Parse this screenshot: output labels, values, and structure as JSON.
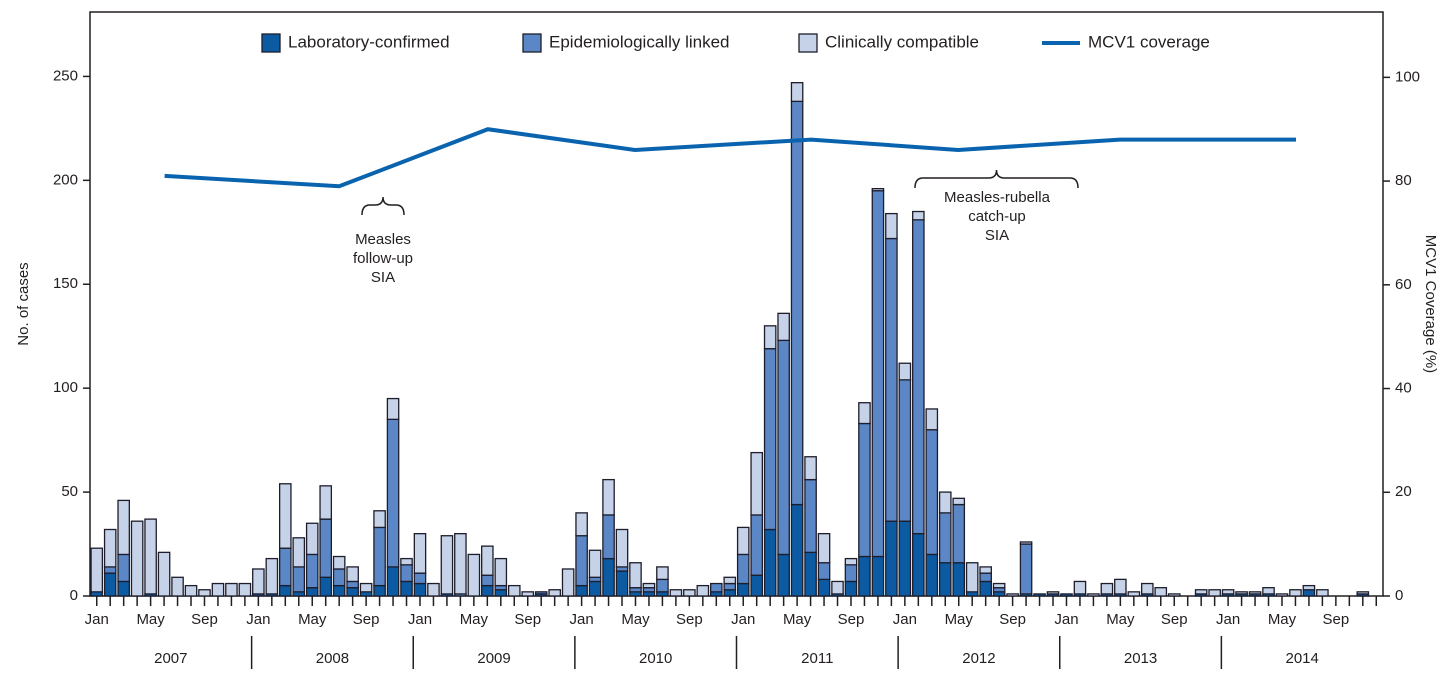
{
  "chart_data": {
    "type": "bar",
    "stacked": true,
    "categories": [
      "Jan",
      null,
      null,
      null,
      "May",
      null,
      null,
      null,
      "Sep",
      null,
      null,
      null,
      "Jan",
      null,
      null,
      null,
      "May",
      null,
      null,
      null,
      "Sep",
      null,
      null,
      null,
      "Jan",
      null,
      null,
      null,
      "May",
      null,
      null,
      null,
      "Sep",
      null,
      null,
      null,
      "Jan",
      null,
      null,
      null,
      "May",
      null,
      null,
      null,
      "Sep",
      null,
      null,
      null,
      "Jan",
      null,
      null,
      null,
      "May",
      null,
      null,
      null,
      "Sep",
      null,
      null,
      null,
      "Jan",
      null,
      null,
      null,
      "May",
      null,
      null,
      null,
      "Sep",
      null,
      null,
      null,
      "Jan",
      null,
      null,
      null,
      "May",
      null,
      null,
      null,
      "Sep",
      null,
      null,
      null,
      "Jan",
      null,
      null,
      null,
      "May",
      null,
      null,
      null,
      "Sep",
      null,
      null,
      null
    ],
    "years": [
      "2007",
      "2008",
      "2009",
      "2010",
      "2011",
      "2012",
      "2013",
      "2014"
    ],
    "y_label": "No. of cases",
    "y2_label": "MCV1 Coverage (%)",
    "ylim": [
      0,
      281
    ],
    "yticks": [
      0,
      50,
      100,
      150,
      200,
      250
    ],
    "y2lim": [
      0,
      112.6
    ],
    "y2ticks": [
      0,
      20,
      40,
      60,
      80,
      100
    ],
    "series": [
      {
        "name": "Laboratory-confirmed",
        "color": "#0b5aa2",
        "values": [
          2,
          11,
          7,
          0,
          1,
          0,
          0,
          0,
          0,
          0,
          0,
          0,
          1,
          1,
          5,
          2,
          4,
          9,
          5,
          4,
          2,
          5,
          14,
          7,
          6,
          0,
          1,
          0,
          0,
          5,
          3,
          0,
          0,
          1,
          0,
          0,
          5,
          7,
          18,
          12,
          2,
          2,
          2,
          0,
          0,
          0,
          2,
          3,
          6,
          10,
          32,
          20,
          44,
          21,
          8,
          1,
          7,
          19,
          19,
          36,
          36,
          30,
          20,
          16,
          16,
          2,
          7,
          2,
          0,
          1,
          1,
          1,
          1,
          1,
          0,
          1,
          1,
          0,
          1,
          0,
          0,
          0,
          1,
          0,
          1,
          1,
          1,
          1,
          0,
          0,
          3,
          0,
          0,
          0,
          1,
          0
        ]
      },
      {
        "name": "Epidemiologically linked",
        "color": "#5b87c6",
        "values": [
          0,
          3,
          13,
          0,
          0,
          0,
          0,
          0,
          0,
          0,
          0,
          0,
          0,
          0,
          18,
          12,
          16,
          28,
          8,
          3,
          0,
          28,
          71,
          8,
          5,
          0,
          0,
          1,
          0,
          5,
          2,
          0,
          0,
          1,
          0,
          0,
          24,
          2,
          21,
          2,
          2,
          2,
          6,
          0,
          0,
          0,
          4,
          3,
          14,
          29,
          87,
          103,
          194,
          35,
          8,
          0,
          8,
          64,
          176,
          136,
          68,
          151,
          60,
          24,
          28,
          0,
          4,
          2,
          0,
          24,
          0,
          0,
          0,
          0,
          0,
          0,
          0,
          0,
          0,
          0,
          0,
          0,
          0,
          0,
          0,
          0,
          0,
          0,
          0,
          0,
          0,
          0,
          0,
          0,
          0,
          0
        ]
      },
      {
        "name": "Clinically compatible",
        "color": "#c5d2e8",
        "values": [
          21,
          18,
          26,
          36,
          36,
          21,
          9,
          5,
          3,
          6,
          6,
          6,
          12,
          17,
          31,
          14,
          15,
          16,
          6,
          7,
          4,
          8,
          10,
          3,
          19,
          6,
          28,
          29,
          20,
          14,
          13,
          5,
          2,
          0,
          3,
          13,
          11,
          13,
          17,
          18,
          12,
          2,
          6,
          3,
          3,
          5,
          0,
          3,
          13,
          30,
          11,
          13,
          9,
          11,
          14,
          6,
          3,
          10,
          1,
          12,
          8,
          4,
          10,
          10,
          3,
          14,
          3,
          2,
          1,
          1,
          0,
          1,
          0,
          6,
          1,
          5,
          7,
          2,
          5,
          4,
          1,
          0,
          2,
          3,
          2,
          1,
          1,
          3,
          1,
          3,
          2,
          3,
          0,
          0,
          1,
          0
        ]
      },
      {
        "name": "MCV1 coverage",
        "type": "line",
        "axis": "y2",
        "color": "#0a63ae",
        "x": [
          2007.42,
          2008.5,
          2009.42,
          2010.33,
          2011.42,
          2012.33,
          2013.33,
          2014.42
        ],
        "values": [
          81,
          79,
          90,
          86,
          88,
          86,
          88,
          88
        ]
      }
    ],
    "annotations": [
      {
        "lines": [
          "Measles",
          "follow-up",
          "SIA"
        ]
      },
      {
        "lines": [
          "Measles-rubella",
          "catch-up",
          "SIA"
        ]
      }
    ]
  }
}
